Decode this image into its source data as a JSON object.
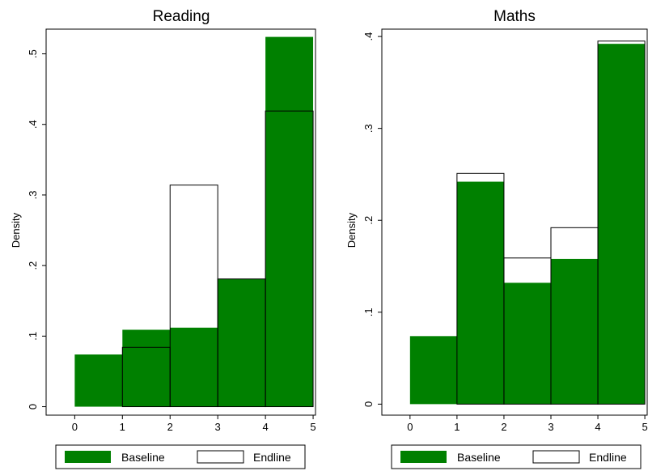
{
  "colors": {
    "baseline": "#008000",
    "endline_edge": "#000000",
    "background": "#ffffff"
  },
  "chart_data": [
    {
      "type": "bar",
      "title": "Reading",
      "ylabel": "Density",
      "xlabel": "",
      "xlim": [
        -0.6,
        5.05
      ],
      "ylim": [
        -0.012,
        0.535
      ],
      "xticks": [
        0,
        1,
        2,
        3,
        4,
        5
      ],
      "xtick_labels": [
        "0",
        "1",
        "2",
        "3",
        "4",
        "5"
      ],
      "yticks": [
        0,
        0.1,
        0.2,
        0.3,
        0.4,
        0.5
      ],
      "ytick_labels": [
        "0",
        ".1",
        ".2",
        ".3",
        ".4",
        ".5"
      ],
      "bin_edges": [
        0,
        1,
        2,
        3,
        4,
        5
      ],
      "series": [
        {
          "name": "Baseline",
          "values": [
            0.074,
            0.109,
            0.112,
            0.181,
            0.524
          ]
        },
        {
          "name": "Endline",
          "values": [
            0.0,
            0.084,
            0.314,
            0.181,
            0.419
          ]
        }
      ],
      "legend": {
        "position": "bottom",
        "entries": [
          "Baseline",
          "Endline"
        ]
      }
    },
    {
      "type": "bar",
      "title": "Maths",
      "ylabel": "Density",
      "xlabel": "",
      "xlim": [
        -0.6,
        5.05
      ],
      "ylim": [
        -0.012,
        0.408
      ],
      "xticks": [
        0,
        1,
        2,
        3,
        4,
        5
      ],
      "xtick_labels": [
        "0",
        "1",
        "2",
        "3",
        "4",
        "5"
      ],
      "yticks": [
        0,
        0.1,
        0.2,
        0.3,
        0.4
      ],
      "ytick_labels": [
        "0",
        ".1",
        ".2",
        ".3",
        ".4"
      ],
      "bin_edges": [
        0,
        1,
        2,
        3,
        4,
        5
      ],
      "series": [
        {
          "name": "Baseline",
          "values": [
            0.074,
            0.242,
            0.132,
            0.158,
            0.392
          ]
        },
        {
          "name": "Endline",
          "values": [
            0.0,
            0.251,
            0.159,
            0.192,
            0.395
          ]
        }
      ],
      "legend": {
        "position": "bottom",
        "entries": [
          "Baseline",
          "Endline"
        ]
      }
    }
  ]
}
